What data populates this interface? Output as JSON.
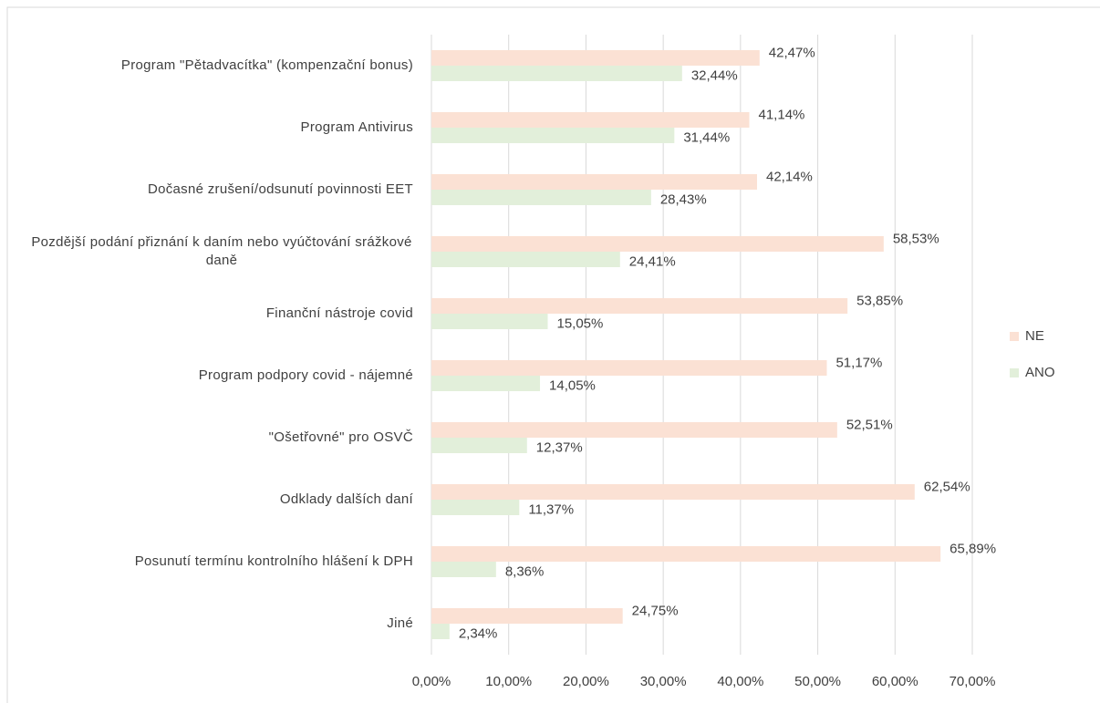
{
  "chart_data": {
    "type": "bar",
    "orientation": "horizontal",
    "categories": [
      "Program \"Pětadvacítka\" (kompenzační bonus)",
      "Program Antivirus",
      "Dočasné zrušení/odsunutí povinnosti EET",
      "Pozdější podání přiznání k daním nebo vyúčtování srážkové daně",
      "Finanční nástroje covid",
      "Program podpory covid - nájemné",
      "\"Ošetřovné\" pro OSVČ",
      "Odklady dalších daní",
      "Posunutí termínu kontrolního hlášení k DPH",
      "Jiné"
    ],
    "series": [
      {
        "name": "NE",
        "color": "#fbe1d4",
        "values": [
          42.47,
          41.14,
          42.14,
          58.53,
          53.85,
          51.17,
          52.51,
          62.54,
          65.89,
          24.75
        ],
        "value_labels": [
          "42,47%",
          "41,14%",
          "42,14%",
          "58,53%",
          "53,85%",
          "51,17%",
          "52,51%",
          "62,54%",
          "65,89%",
          "24,75%"
        ]
      },
      {
        "name": "ANO",
        "color": "#e2efda",
        "values": [
          32.44,
          31.44,
          28.43,
          24.41,
          15.05,
          14.05,
          12.37,
          11.37,
          8.36,
          2.34
        ],
        "value_labels": [
          "32,44%",
          "31,44%",
          "28,43%",
          "24,41%",
          "15,05%",
          "14,05%",
          "12,37%",
          "11,37%",
          "8,36%",
          "2,34%"
        ]
      }
    ],
    "xlim": [
      0,
      70
    ],
    "xticks": [
      {
        "value": 0,
        "label": "0,00%"
      },
      {
        "value": 10,
        "label": "10,00%"
      },
      {
        "value": 20,
        "label": "20,00%"
      },
      {
        "value": 30,
        "label": "30,00%"
      },
      {
        "value": 40,
        "label": "40,00%"
      },
      {
        "value": 50,
        "label": "50,00%"
      },
      {
        "value": 60,
        "label": "60,00%"
      },
      {
        "value": 70,
        "label": "70,00%"
      }
    ],
    "grid": true,
    "legend": "right"
  }
}
